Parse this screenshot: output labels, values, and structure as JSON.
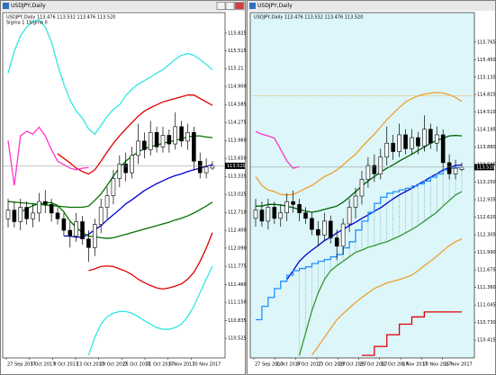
{
  "chart_data": [
    {
      "type": "candlestick",
      "window_title": "USDJPY,Daily",
      "background": "#ffffff",
      "info": [
        "USDJPY,Daily 113.476 113.532 113.476 113.520",
        "Sigma 1 1Sigma 0"
      ],
      "ylim": [
        110.183,
        116.182
      ],
      "yticks": [
        115.825,
        115.515,
        115.21,
        {
          "value": 114.9,
          "label": "114.900"
        },
        114.585,
        114.275,
        {
          "value": 113.96,
          "label": "113.960"
        },
        {
          "value": 113.65,
          "label": "113.650"
        },
        113.335,
        113.025,
        {
          "value": 112.71,
          "label": "112.710"
        },
        {
          "value": 112.4,
          "label": "112.400"
        },
        {
          "value": 112.09,
          "label": "112.090"
        },
        111.775,
        {
          "value": 111.46,
          "label": "111.460"
        },
        {
          "value": 111.15,
          "label": "111.150"
        },
        110.835,
        110.525
      ],
      "x_labels": [
        "27 Sep 2017",
        "3 Oct 2017",
        "9 Oct 2017",
        "13 Oct 2017",
        "19 Oct 2017",
        "25 Oct 2017",
        "31 Oct 2017",
        "6 Nov 2017",
        "10 Nov 2017"
      ],
      "last_price": {
        "value": 113.52,
        "label": "113.520"
      },
      "open": [
        112.6,
        112.75,
        112.55,
        112.8,
        112.6,
        112.7,
        112.9,
        112.85,
        112.7,
        112.6,
        112.4,
        112.3,
        112.55,
        112.25,
        112.1,
        112.5,
        112.8,
        113.0,
        113.3,
        113.55,
        113.4,
        113.7,
        113.95,
        113.8,
        114.1,
        113.85,
        114.05,
        113.9,
        114.2,
        113.95,
        114.1,
        113.6,
        113.4,
        113.48
      ],
      "high": [
        112.95,
        112.9,
        112.95,
        112.9,
        112.85,
        113.05,
        113.1,
        112.95,
        112.8,
        112.7,
        112.55,
        112.7,
        112.65,
        112.4,
        112.6,
        112.95,
        113.15,
        113.45,
        113.7,
        113.75,
        113.85,
        114.25,
        114.1,
        114.3,
        114.2,
        114.2,
        114.15,
        114.45,
        114.3,
        114.25,
        114.2,
        113.75,
        113.65,
        113.6
      ],
      "low": [
        112.45,
        112.45,
        112.4,
        112.5,
        112.45,
        112.55,
        112.7,
        112.55,
        112.5,
        112.3,
        112.1,
        112.2,
        112.15,
        111.85,
        111.95,
        112.35,
        112.6,
        112.85,
        113.15,
        113.25,
        113.3,
        113.55,
        113.65,
        113.7,
        113.75,
        113.75,
        113.75,
        113.8,
        113.85,
        113.8,
        113.45,
        113.3,
        113.3,
        113.45
      ],
      "close": [
        112.75,
        112.55,
        112.8,
        112.6,
        112.7,
        112.9,
        112.85,
        112.7,
        112.6,
        112.4,
        112.3,
        112.55,
        112.25,
        112.1,
        112.5,
        112.8,
        113.0,
        113.3,
        113.55,
        113.4,
        113.7,
        113.95,
        113.8,
        114.1,
        113.85,
        114.05,
        113.9,
        114.2,
        113.95,
        114.1,
        113.6,
        113.4,
        113.5,
        113.52
      ],
      "series": [
        {
          "color": "#33e6e6",
          "values": [
            115.13,
            115.51,
            115.78,
            115.93,
            116.03,
            116.06,
            115.93,
            115.67,
            115.28,
            114.94,
            114.66,
            114.47,
            114.35,
            114.16,
            114.07,
            114.22,
            114.38,
            114.5,
            114.58,
            114.74,
            114.85,
            114.94,
            115.0,
            115.06,
            115.13,
            115.19,
            115.28,
            115.37,
            115.44,
            115.47,
            115.44,
            115.37,
            115.28,
            115.19
          ]
        },
        {
          "color": "#e00000",
          "values": [
            null,
            null,
            null,
            null,
            null,
            null,
            null,
            null,
            113.73,
            113.65,
            113.57,
            113.48,
            113.42,
            113.38,
            113.45,
            113.6,
            113.76,
            113.91,
            114.04,
            114.16,
            114.27,
            114.38,
            114.47,
            114.53,
            114.58,
            114.63,
            114.66,
            114.69,
            114.72,
            114.75,
            114.75,
            114.69,
            114.63,
            114.57
          ]
        },
        {
          "color": "#007000",
          "values": [
            112.9,
            112.89,
            112.88,
            112.87,
            112.86,
            112.85,
            112.84,
            112.83,
            112.82,
            112.81,
            112.8,
            112.8,
            112.8,
            112.82,
            112.92,
            113.03,
            113.18,
            113.34,
            113.49,
            113.6,
            113.69,
            113.76,
            113.82,
            113.85,
            113.88,
            113.91,
            113.94,
            113.96,
            113.99,
            114.02,
            114.04,
            114.04,
            114.02,
            114.01
          ]
        },
        {
          "color": "#0000d0",
          "values": [
            null,
            null,
            null,
            null,
            null,
            null,
            null,
            null,
            null,
            112.3,
            112.3,
            112.28,
            112.28,
            112.33,
            112.41,
            112.48,
            112.58,
            112.67,
            112.76,
            112.86,
            112.93,
            113.01,
            113.09,
            113.15,
            113.21,
            113.26,
            113.31,
            113.35,
            113.38,
            113.42,
            113.45,
            113.48,
            113.51,
            113.54
          ]
        },
        {
          "color": "#007000",
          "values": [
            null,
            null,
            112.72,
            112.77,
            112.83,
            112.86,
            112.88,
            112.88,
            112.83,
            112.72,
            112.56,
            112.45,
            112.36,
            112.3,
            112.29,
            112.27,
            112.26,
            112.27,
            112.3,
            112.33,
            112.36,
            112.39,
            112.42,
            112.45,
            112.48,
            112.51,
            112.54,
            112.58,
            112.61,
            112.65,
            112.7,
            112.76,
            112.82,
            112.89
          ]
        },
        {
          "color": "#e00000",
          "values": [
            null,
            null,
            null,
            null,
            null,
            null,
            null,
            null,
            null,
            null,
            null,
            null,
            null,
            111.7,
            111.73,
            111.77,
            111.78,
            111.77,
            111.73,
            111.69,
            111.63,
            111.55,
            111.49,
            111.44,
            111.4,
            111.38,
            111.4,
            111.43,
            111.47,
            111.55,
            111.67,
            111.86,
            112.09,
            112.36
          ]
        },
        {
          "color": "#33e6e6",
          "values": [
            null,
            null,
            null,
            null,
            null,
            null,
            null,
            null,
            null,
            null,
            null,
            null,
            null,
            110.23,
            110.54,
            110.77,
            110.9,
            110.96,
            110.99,
            110.99,
            110.96,
            110.9,
            110.83,
            110.77,
            110.71,
            110.68,
            110.68,
            110.71,
            110.77,
            110.9,
            111.08,
            111.32,
            111.55,
            111.78
          ]
        },
        {
          "color": "#ff33cc",
          "values": [
            113.96,
            113.18,
            114.04,
            114.12,
            114.07,
            114.19,
            114.04,
            113.8,
            113.6,
            113.54,
            113.48,
            113.45,
            113.48,
            113.49,
            null,
            null,
            null,
            null,
            null,
            null,
            null,
            null,
            null,
            null,
            null,
            null,
            null,
            null,
            null,
            null,
            null,
            null,
            null,
            null
          ]
        }
      ]
    },
    {
      "type": "candlestick",
      "window_title": "USDJPY,Daily",
      "background": "#dcf6f9",
      "info": [
        "USDJPY,Daily 113.476 113.532 113.476 113.520"
      ],
      "ylim": [
        110.094,
        116.295
      ],
      "yticks": [
        115.765,
        {
          "value": 115.45,
          "label": "115.450"
        },
        115.135,
        114.825,
        {
          "value": 114.51,
          "label": "114.510"
        },
        114.195,
        {
          "value": 113.88,
          "label": "113.880"
        },
        113.565,
        {
          "value": 113.25,
          "label": "113.250"
        },
        112.935,
        {
          "value": 112.62,
          "label": "112.620"
        },
        112.305,
        {
          "value": 111.99,
          "label": "111.990"
        },
        111.675,
        {
          "value": 111.36,
          "label": "111.360"
        },
        111.045,
        {
          "value": 110.73,
          "label": "110.730"
        },
        110.415
      ],
      "x_labels": [
        "27 Sep 2017",
        "3 Oct 2017",
        "9 Oct 2017",
        "13 Oct 2017",
        "19 Oct 2017",
        "25 Oct 2017",
        "31 Oct 2017",
        "6 Nov 2017",
        "10 Nov 2017",
        "16 Nov 2017"
      ],
      "last_price": {
        "value": 113.52,
        "label": "113.520"
      },
      "hlines": [
        {
          "value": 114.8,
          "color": "#f0a030"
        }
      ],
      "open": [
        112.6,
        112.75,
        112.55,
        112.8,
        112.6,
        112.7,
        112.9,
        112.85,
        112.7,
        112.6,
        112.4,
        112.3,
        112.55,
        112.25,
        112.1,
        112.5,
        112.8,
        113.0,
        113.3,
        113.55,
        113.4,
        113.7,
        113.95,
        113.8,
        114.1,
        113.85,
        114.05,
        113.9,
        114.2,
        113.95,
        114.1,
        113.6,
        113.4,
        113.48
      ],
      "high": [
        112.95,
        112.9,
        112.95,
        112.9,
        112.85,
        113.05,
        113.1,
        112.95,
        112.8,
        112.7,
        112.55,
        112.7,
        112.65,
        112.4,
        112.6,
        112.95,
        113.15,
        113.45,
        113.7,
        113.75,
        113.85,
        114.25,
        114.1,
        114.3,
        114.2,
        114.2,
        114.15,
        114.45,
        114.3,
        114.25,
        114.2,
        113.75,
        113.65,
        113.6
      ],
      "low": [
        112.45,
        112.45,
        112.4,
        112.5,
        112.45,
        112.55,
        112.7,
        112.55,
        112.5,
        112.3,
        112.1,
        112.2,
        112.15,
        111.85,
        111.95,
        112.35,
        112.6,
        112.85,
        113.15,
        113.25,
        113.3,
        113.55,
        113.65,
        113.7,
        113.75,
        113.75,
        113.75,
        113.8,
        113.85,
        113.8,
        113.45,
        113.3,
        113.3,
        113.45
      ],
      "close": [
        112.75,
        112.55,
        112.8,
        112.6,
        112.7,
        112.9,
        112.85,
        112.7,
        112.6,
        112.4,
        112.3,
        112.55,
        112.25,
        112.1,
        112.5,
        112.8,
        113.0,
        113.3,
        113.55,
        113.4,
        113.7,
        113.95,
        113.8,
        114.1,
        113.85,
        114.05,
        113.9,
        114.2,
        113.95,
        114.1,
        113.6,
        113.4,
        113.5,
        113.52
      ],
      "series": [
        {
          "color": "#f0a030",
          "values": [
            113.35,
            113.19,
            113.11,
            113.08,
            113.03,
            113.02,
            113.03,
            113.08,
            113.14,
            113.19,
            113.27,
            113.35,
            113.4,
            113.47,
            113.56,
            113.66,
            113.75,
            113.88,
            114.0,
            114.11,
            114.24,
            114.37,
            114.48,
            114.59,
            114.69,
            114.75,
            114.8,
            114.83,
            114.85,
            114.86,
            114.85,
            114.82,
            114.77,
            114.7
          ]
        },
        {
          "color": "#f0a030",
          "values": [
            null,
            null,
            null,
            null,
            null,
            null,
            null,
            null,
            null,
            110.14,
            110.3,
            110.46,
            110.62,
            110.78,
            110.89,
            110.99,
            111.09,
            111.18,
            111.26,
            111.34,
            111.39,
            111.44,
            111.47,
            111.5,
            111.54,
            111.58,
            111.66,
            111.75,
            111.83,
            111.92,
            112.02,
            112.11,
            112.18,
            112.23
          ]
        },
        {
          "color": "#006000",
          "values": [
            112.82,
            112.82,
            112.85,
            112.85,
            112.84,
            112.82,
            112.79,
            112.76,
            112.73,
            112.71,
            112.73,
            112.76,
            112.79,
            112.82,
            112.89,
            112.98,
            113.08,
            113.18,
            113.27,
            113.35,
            113.43,
            113.5,
            113.56,
            113.63,
            113.69,
            113.75,
            113.82,
            113.88,
            113.95,
            114.0,
            114.04,
            114.08,
            114.09,
            114.08
          ]
        },
        {
          "color": "#339933",
          "values": [
            null,
            null,
            null,
            null,
            null,
            null,
            null,
            110.14,
            110.54,
            110.94,
            111.26,
            111.5,
            111.66,
            111.75,
            111.83,
            111.91,
            111.99,
            112.03,
            112.08,
            112.11,
            112.15,
            112.18,
            112.23,
            112.28,
            112.34,
            112.4,
            112.47,
            112.55,
            112.63,
            112.71,
            112.82,
            112.92,
            113.02,
            113.08
          ]
        },
        {
          "color": "#0000d0",
          "values": [
            null,
            null,
            null,
            null,
            null,
            111.5,
            111.66,
            111.83,
            111.94,
            112.03,
            112.11,
            112.2,
            112.26,
            112.34,
            112.4,
            112.47,
            112.53,
            112.6,
            112.66,
            112.73,
            112.79,
            112.87,
            112.95,
            113.02,
            113.08,
            113.14,
            113.21,
            113.27,
            113.34,
            113.4,
            113.47,
            113.51,
            113.55,
            113.56
          ]
        },
        {
          "color": "#2090ff",
          "step": true,
          "cloud_to": 3,
          "values": [
            110.78,
            111.02,
            111.18,
            111.34,
            111.47,
            111.58,
            111.66,
            111.7,
            111.73,
            111.79,
            111.83,
            111.86,
            111.91,
            111.95,
            112.07,
            112.18,
            112.39,
            112.55,
            112.71,
            112.87,
            112.98,
            113.05,
            113.08,
            113.11,
            113.14,
            113.18,
            113.22,
            113.27,
            113.34,
            113.4,
            113.47,
            113.5,
            113.51,
            113.53
          ]
        },
        {
          "color": "#e00000",
          "step": true,
          "values": [
            null,
            null,
            null,
            null,
            null,
            null,
            null,
            null,
            null,
            null,
            null,
            null,
            null,
            null,
            null,
            null,
            null,
            110.14,
            110.14,
            110.3,
            110.3,
            110.51,
            110.51,
            110.7,
            110.7,
            110.83,
            110.83,
            110.92,
            110.92,
            110.92,
            110.92,
            110.92,
            110.92,
            110.92
          ]
        },
        {
          "color": "#ff33cc",
          "values": [
            114.16,
            114.11,
            114.08,
            114.04,
            113.84,
            113.63,
            113.5,
            113.53,
            null,
            null,
            null,
            null,
            null,
            null,
            null,
            null,
            null,
            null,
            null,
            null,
            null,
            null,
            null,
            null,
            null,
            null,
            null,
            null,
            null,
            null,
            null,
            null,
            null,
            null
          ]
        }
      ]
    }
  ]
}
